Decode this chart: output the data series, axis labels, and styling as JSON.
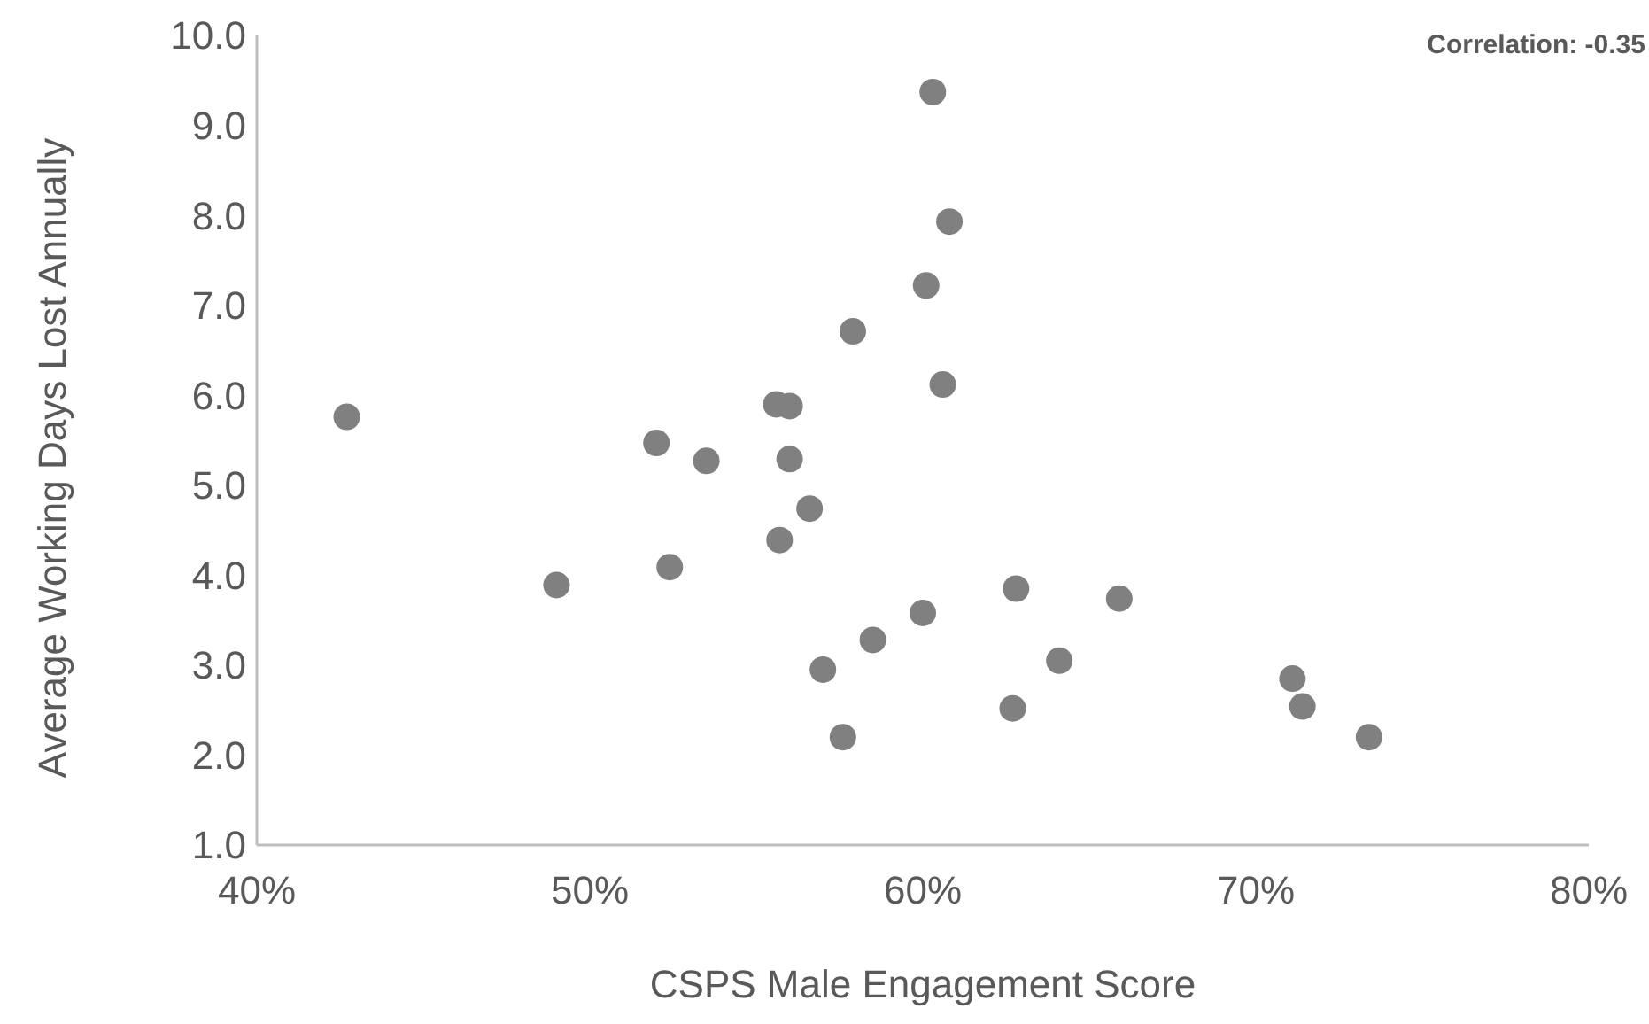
{
  "chart_data": {
    "type": "scatter",
    "xlabel": "CSPS Male Engagement Score",
    "ylabel": "Average Working Days Lost Annually",
    "annotations": [
      "Correlation: -0.35"
    ],
    "x": [
      42.7,
      49.0,
      52.0,
      52.4,
      53.5,
      55.6,
      56.0,
      56.0,
      55.7,
      56.6,
      57.0,
      57.6,
      57.9,
      58.5,
      60.0,
      60.1,
      60.3,
      60.6,
      60.8,
      62.7,
      62.8,
      64.1,
      65.9,
      71.1,
      71.4,
      73.4
    ],
    "series": [
      {
        "color": "#808080",
        "values": [
          5.76,
          3.89,
          5.47,
          4.09,
          5.27,
          5.9,
          5.88,
          5.29,
          4.39,
          4.74,
          2.95,
          2.2,
          6.71,
          3.28,
          3.58,
          7.22,
          9.37,
          6.12,
          7.93,
          2.52,
          3.85,
          3.05,
          3.74,
          2.85,
          2.54,
          2.2
        ]
      }
    ],
    "xlim": [
      40,
      80
    ],
    "xticks": [
      {
        "value": 40,
        "label": "40%"
      },
      {
        "value": 50,
        "label": "50%"
      },
      {
        "value": 60,
        "label": "60%"
      },
      {
        "value": 70,
        "label": "70%"
      },
      {
        "value": 80,
        "label": "80%"
      }
    ],
    "ylim": [
      1,
      10
    ],
    "yticks": [
      {
        "value": 1,
        "label": "1.0"
      },
      {
        "value": 2,
        "label": "2.0"
      },
      {
        "value": 3,
        "label": "3.0"
      },
      {
        "value": 4,
        "label": "4.0"
      },
      {
        "value": 5,
        "label": "5.0"
      },
      {
        "value": 6,
        "label": "6.0"
      },
      {
        "value": 7,
        "label": "7.0"
      },
      {
        "value": 8,
        "label": "8.0"
      },
      {
        "value": 9,
        "label": "9.0"
      },
      {
        "value": 10,
        "label": "10.0"
      }
    ],
    "grid": false,
    "marker": "circle"
  }
}
